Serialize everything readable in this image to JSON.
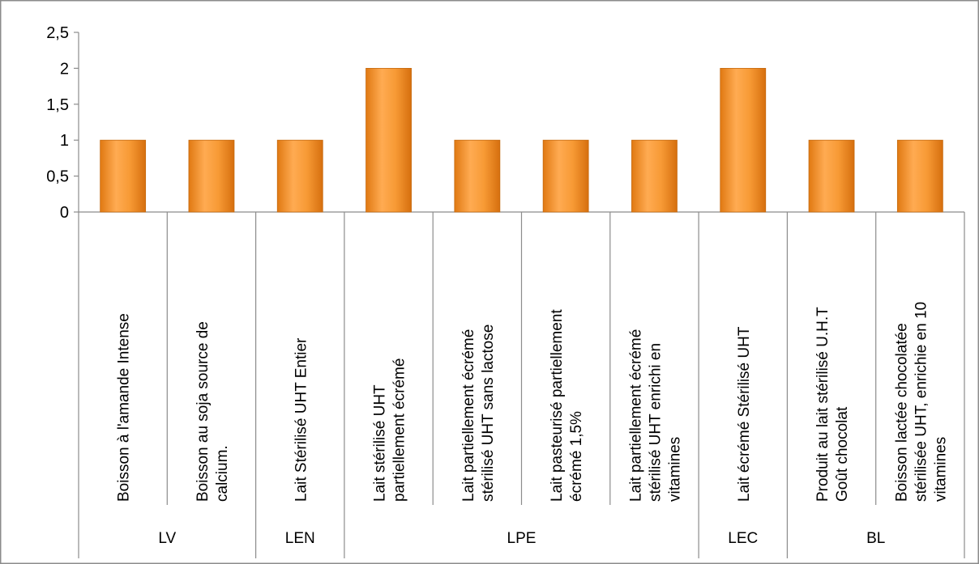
{
  "chart_data": {
    "type": "bar",
    "title": "",
    "xlabel": "",
    "ylabel": "",
    "ylim": [
      0,
      2.5
    ],
    "yticks": [
      0,
      0.5,
      1,
      1.5,
      2,
      2.5
    ],
    "ytick_labels": [
      "0",
      "0,5",
      "1",
      "1,5",
      "2",
      "2,5"
    ],
    "grid": false,
    "legend": "none",
    "bar_color": "#f5942a",
    "categories": [
      {
        "lines": [
          "Boisson à l'amande Intense"
        ]
      },
      {
        "lines": [
          "Boisson au soja source de",
          "calcium."
        ]
      },
      {
        "lines": [
          "Lait Stérilisé UHT Entier"
        ]
      },
      {
        "lines": [
          "Lait stérilisé UHT",
          "partiellement écrémé"
        ]
      },
      {
        "lines": [
          "Lait partiellement écrémé",
          "stérilisé UHT sans lactose"
        ]
      },
      {
        "lines": [
          "Lait pasteurisé partiellement",
          "écrémé 1,5%"
        ]
      },
      {
        "lines": [
          "Lait partiellement écrémé",
          "stérilisé UHT enrichi en",
          "vitamines"
        ]
      },
      {
        "lines": [
          "Lait écrémé Stérilisé UHT"
        ]
      },
      {
        "lines": [
          "Produit au lait stérilisé U.H.T",
          "Goût chocolat"
        ]
      },
      {
        "lines": [
          "Boisson lactée chocolatée",
          "stérilisée UHT, enrichie en 10",
          "vitamines"
        ]
      }
    ],
    "values": [
      1,
      1,
      1,
      2,
      1,
      1,
      1,
      2,
      1,
      1
    ],
    "groups": [
      {
        "label": "LV",
        "span": 2
      },
      {
        "label": "LEN",
        "span": 1
      },
      {
        "label": "LPE",
        "span": 4
      },
      {
        "label": "LEC",
        "span": 1
      },
      {
        "label": "BL",
        "span": 2
      }
    ]
  }
}
